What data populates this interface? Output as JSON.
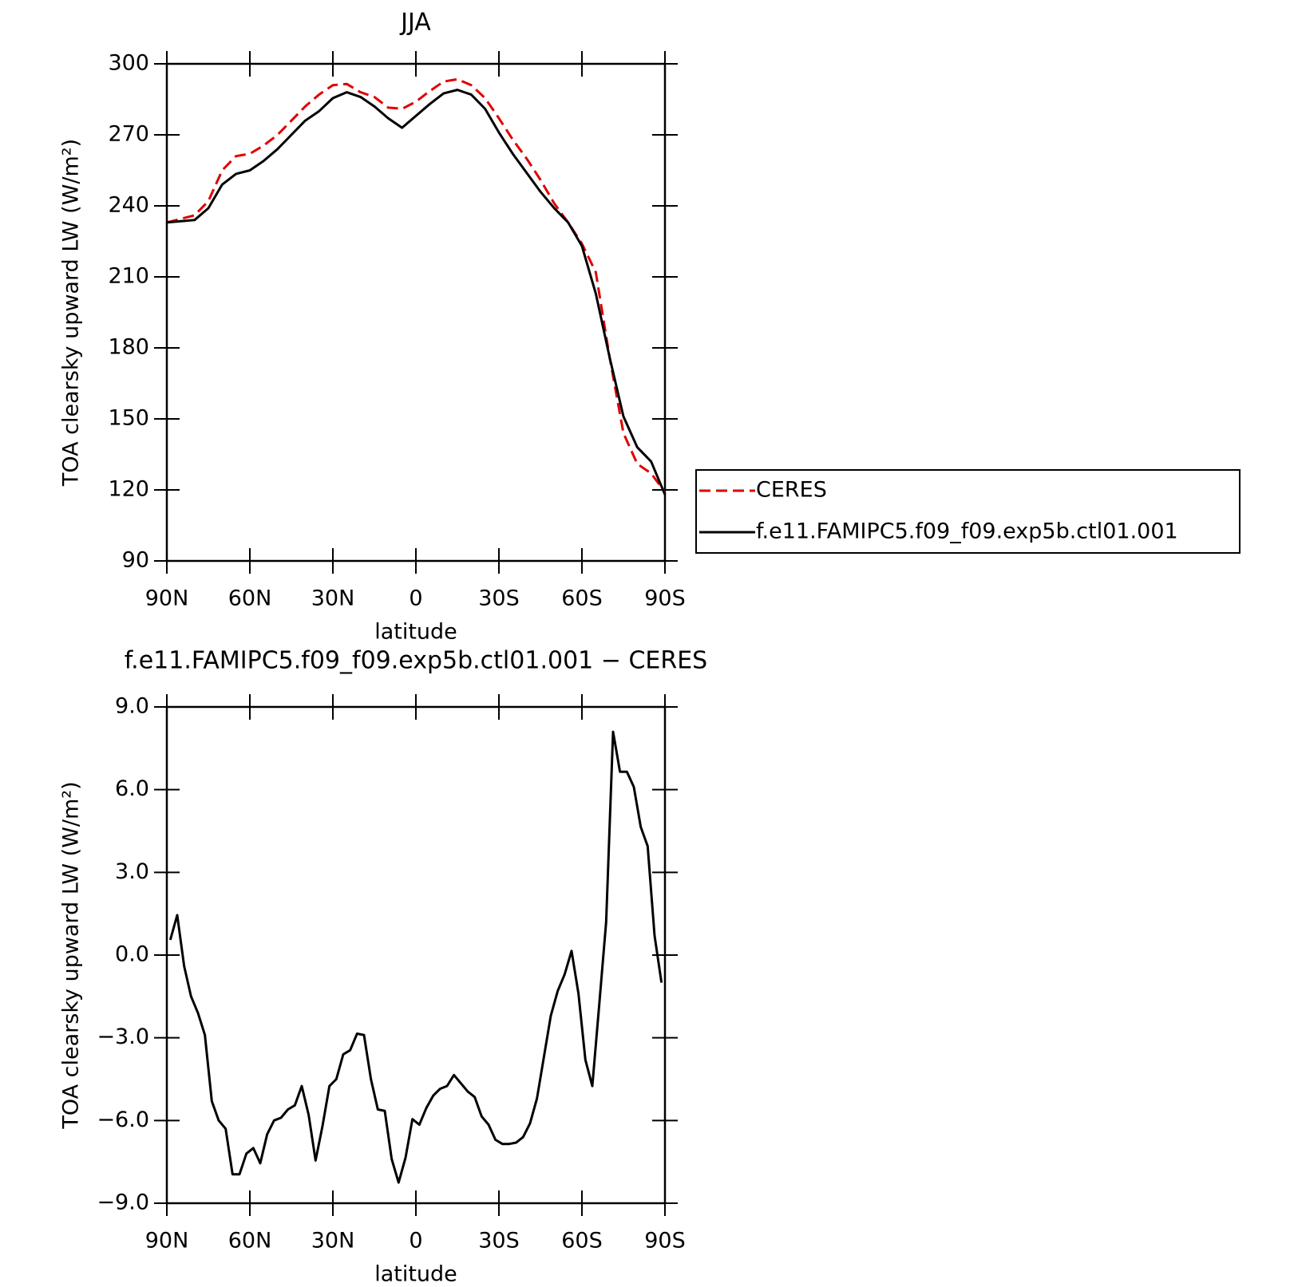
{
  "chart_data": [
    {
      "type": "line",
      "title": "JJA",
      "xlabel": "latitude",
      "ylabel": "TOA clearsky upward LW (W/m²)",
      "x": [
        90,
        85,
        80,
        75,
        70,
        65,
        60,
        55,
        50,
        45,
        40,
        35,
        30,
        25,
        20,
        15,
        10,
        5,
        0,
        -5,
        -10,
        -15,
        -20,
        -25,
        -30,
        -35,
        -40,
        -45,
        -50,
        -55,
        -60,
        -65,
        -70,
        -75,
        -80,
        -85,
        -90
      ],
      "series": [
        {
          "name": "CERES",
          "color": "#e00000",
          "dashed": true,
          "values": [
            233,
            234.5,
            236,
            242,
            255,
            261,
            262,
            265.5,
            270,
            276,
            282,
            287,
            291,
            291.5,
            288,
            286,
            281.5,
            281,
            284,
            288.5,
            292.5,
            293.5,
            291,
            285.5,
            277,
            268,
            260,
            251,
            241,
            233,
            224,
            212,
            176,
            144,
            131,
            127,
            119
          ]
        },
        {
          "name": "f.e11.FAMIPC5.f09_f09.exp5b.ctl01.001",
          "color": "#000000",
          "dashed": false,
          "values": [
            233,
            233.5,
            234,
            239,
            249,
            253.5,
            255,
            259,
            264,
            270,
            276,
            280,
            285.5,
            288,
            286,
            282,
            277,
            273,
            278,
            283,
            287.5,
            289,
            287,
            281,
            271,
            262,
            254,
            246,
            239,
            233,
            223,
            203,
            176,
            151,
            138,
            132,
            118
          ]
        }
      ],
      "xlim": [
        90,
        -90
      ],
      "xticks": [
        {
          "value": 90,
          "label": "90N"
        },
        {
          "value": 60,
          "label": "60N"
        },
        {
          "value": 30,
          "label": "30N"
        },
        0,
        {
          "value": -30,
          "label": "30S"
        },
        {
          "value": -60,
          "label": "60S"
        },
        {
          "value": -90,
          "label": "90S"
        }
      ],
      "ylim": [
        90,
        300
      ],
      "yticks": [
        90,
        120,
        150,
        180,
        210,
        240,
        270,
        300
      ],
      "legend": "outside right"
    },
    {
      "type": "line",
      "title": "f.e11.FAMIPC5.f09_f09.exp5b.ctl01.001 − CERES",
      "xlabel": "latitude",
      "ylabel": "TOA clearsky upward LW (W/m²)",
      "x": [
        88.75,
        86.25,
        83.75,
        81.25,
        78.75,
        76.25,
        73.75,
        71.25,
        68.75,
        66.25,
        63.75,
        61.25,
        58.75,
        56.25,
        53.75,
        51.25,
        48.75,
        46.25,
        43.75,
        41.25,
        38.75,
        36.25,
        33.75,
        31.25,
        28.75,
        26.25,
        23.75,
        21.25,
        18.75,
        16.25,
        13.75,
        11.25,
        8.75,
        6.25,
        3.75,
        1.25,
        -1.25,
        -3.75,
        -6.25,
        -8.75,
        -11.25,
        -13.75,
        -16.25,
        -18.75,
        -21.25,
        -23.75,
        -26.25,
        -28.75,
        -31.25,
        -33.75,
        -36.25,
        -38.75,
        -41.25,
        -43.75,
        -46.25,
        -48.75,
        -51.25,
        -53.75,
        -56.25,
        -58.75,
        -61.25,
        -63.75,
        -66.25,
        -68.75,
        -71.25,
        -73.75,
        -76.25,
        -78.75,
        -81.25,
        -83.75,
        -86.25,
        -88.75
      ],
      "series": [
        {
          "color": "#000000",
          "dashed": false,
          "values": [
            0.55,
            1.45,
            -0.4,
            -1.5,
            -2.1,
            -2.9,
            -5.3,
            -6.0,
            -6.3,
            -7.95,
            -7.95,
            -7.2,
            -7.0,
            -7.55,
            -6.5,
            -6.0,
            -5.9,
            -5.6,
            -5.45,
            -4.75,
            -5.8,
            -7.45,
            -6.2,
            -4.75,
            -4.5,
            -3.6,
            -3.45,
            -2.85,
            -2.9,
            -4.5,
            -5.6,
            -5.65,
            -7.4,
            -8.25,
            -7.35,
            -5.95,
            -6.15,
            -5.55,
            -5.1,
            -4.85,
            -4.75,
            -4.35,
            -4.65,
            -4.95,
            -5.15,
            -5.85,
            -6.15,
            -6.7,
            -6.85,
            -6.85,
            -6.8,
            -6.6,
            -6.1,
            -5.2,
            -3.7,
            -2.2,
            -1.3,
            -0.7,
            0.15,
            -1.4,
            -3.8,
            -4.75,
            -1.8,
            1.2,
            8.1,
            6.65,
            6.65,
            6.1,
            4.65,
            3.95,
            0.7,
            -1.0
          ]
        }
      ],
      "xlim": [
        90,
        -90
      ],
      "xticks": [
        {
          "value": 90,
          "label": "90N"
        },
        {
          "value": 60,
          "label": "60N"
        },
        {
          "value": 30,
          "label": "30N"
        },
        0,
        {
          "value": -30,
          "label": "30S"
        },
        {
          "value": -60,
          "label": "60S"
        },
        {
          "value": -90,
          "label": "90S"
        }
      ],
      "ylim": [
        -9,
        9
      ],
      "yticks": [
        {
          "value": -9,
          "label": "−9.0"
        },
        {
          "value": -6,
          "label": "−6.0"
        },
        {
          "value": -3,
          "label": "−3.0"
        },
        {
          "value": 0,
          "label": "0.0"
        },
        {
          "value": 3,
          "label": "3.0"
        },
        {
          "value": 6,
          "label": "6.0"
        },
        {
          "value": 9,
          "label": "9.0"
        }
      ]
    }
  ]
}
